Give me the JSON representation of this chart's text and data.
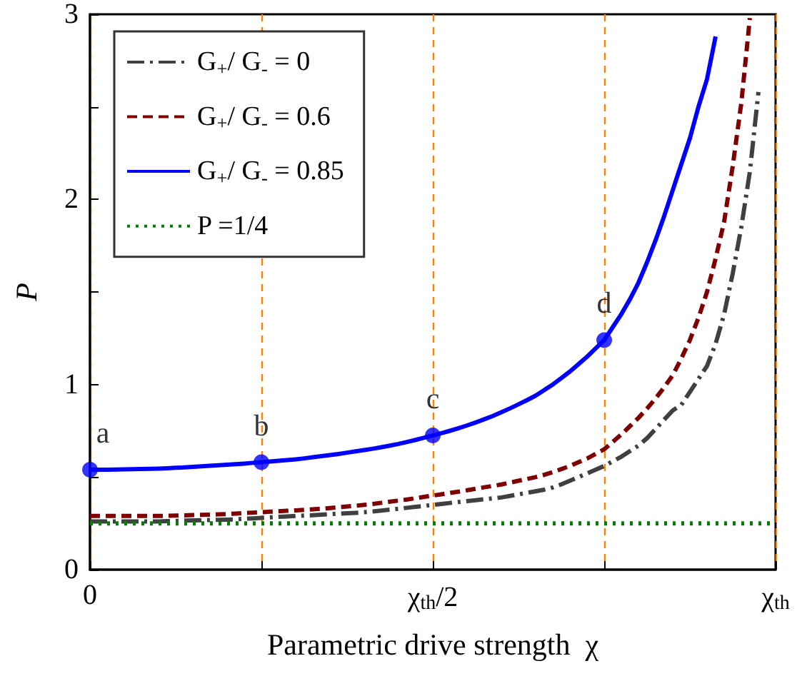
{
  "chart_data": {
    "type": "line",
    "xlabel": "Parametric drive strength  χ",
    "ylabel": "P",
    "categories": [
      "0",
      null,
      null,
      null,
      null,
      null,
      null,
      null,
      null,
      null,
      null,
      null,
      null,
      null,
      null,
      null,
      null,
      null,
      null,
      null,
      null,
      null,
      null,
      null,
      null,
      null,
      null,
      null,
      null,
      null,
      null,
      null,
      null,
      null,
      null,
      null,
      null,
      null,
      null,
      null,
      "χ$_{th}$/2",
      null,
      null,
      null,
      null,
      null,
      null,
      null,
      null,
      null,
      null,
      null,
      null,
      null,
      null,
      null,
      null,
      null,
      null,
      null,
      null,
      null,
      null,
      null,
      null,
      null,
      null,
      null,
      null,
      null,
      null,
      null,
      null,
      null,
      null,
      null,
      null,
      null,
      null,
      null,
      "χ$_{th}$"
    ],
    "ylim": [
      0,
      3
    ],
    "yticks": [
      0,
      {
        "value": 0.5,
        "label": null
      },
      1,
      {
        "value": 1.5,
        "label": null
      },
      2,
      {
        "value": 2.5,
        "label": null
      },
      3
    ],
    "legend": "top left",
    "marker": "none",
    "grid": "x",
    "series": [
      {
        "name": "G$_{+}$/ G$_{-}$ = 0",
        "color": "#404040",
        "line_style": "dashdot",
        "values": [
          0.26,
          0.26,
          0.26,
          0.26,
          0.26,
          0.26,
          0.26,
          0.26,
          0.26,
          0.262,
          0.263,
          0.265,
          0.266,
          0.267,
          0.268,
          0.269,
          0.27,
          0.272,
          0.275,
          0.277,
          0.28,
          0.282,
          0.285,
          0.287,
          0.29,
          0.292,
          0.294,
          0.297,
          0.3,
          0.302,
          0.305,
          0.307,
          0.31,
          0.314,
          0.319,
          0.324,
          0.329,
          0.334,
          0.339,
          0.344,
          0.35,
          0.355,
          0.36,
          0.365,
          0.37,
          0.375,
          0.38,
          0.385,
          0.39,
          0.398,
          0.407,
          0.415,
          0.423,
          0.432,
          0.444,
          0.461,
          0.48,
          0.5,
          0.52,
          0.54,
          0.56,
          0.585,
          0.61,
          0.64,
          0.67,
          0.71,
          0.76,
          0.81,
          0.86,
          0.89,
          0.96,
          1.03,
          1.1,
          1.22,
          1.38,
          1.6,
          1.85,
          2.15,
          2.58,
          null,
          null
        ]
      },
      {
        "name": "G$_{+}$/ G$_{-}$ = 0.6",
        "color": "#7f0000",
        "line_style": "dashed",
        "values": [
          0.29,
          0.29,
          0.29,
          0.29,
          0.29,
          0.29,
          0.29,
          0.29,
          0.29,
          0.291,
          0.292,
          0.293,
          0.295,
          0.296,
          0.297,
          0.299,
          0.3,
          0.303,
          0.306,
          0.308,
          0.31,
          0.313,
          0.315,
          0.318,
          0.32,
          0.323,
          0.326,
          0.329,
          0.333,
          0.337,
          0.341,
          0.345,
          0.35,
          0.355,
          0.361,
          0.367,
          0.373,
          0.379,
          0.386,
          0.393,
          0.4,
          0.407,
          0.414,
          0.421,
          0.429,
          0.437,
          0.445,
          0.452,
          0.46,
          0.47,
          0.48,
          0.49,
          0.5,
          0.512,
          0.527,
          0.543,
          0.56,
          0.58,
          0.6,
          0.625,
          0.65,
          0.69,
          0.73,
          0.775,
          0.82,
          0.87,
          0.925,
          0.985,
          1.05,
          1.14,
          1.24,
          1.36,
          1.5,
          1.68,
          1.88,
          2.18,
          2.52,
          2.98,
          null,
          null,
          null
        ]
      },
      {
        "name": "G$_{+}$/ G$_{-}$ = 0.85",
        "color": "#0000ff",
        "line_style": "solid",
        "values": [
          0.54,
          0.54,
          0.54,
          0.541,
          0.542,
          0.543,
          0.544,
          0.545,
          0.546,
          0.548,
          0.55,
          0.552,
          0.555,
          0.558,
          0.561,
          0.564,
          0.567,
          0.57,
          0.573,
          0.577,
          0.58,
          0.584,
          0.588,
          0.592,
          0.596,
          0.601,
          0.607,
          0.613,
          0.619,
          0.625,
          0.632,
          0.639,
          0.646,
          0.653,
          0.661,
          0.67,
          0.679,
          0.69,
          0.701,
          0.713,
          0.725,
          0.737,
          0.75,
          0.764,
          0.779,
          0.795,
          0.812,
          0.83,
          0.85,
          0.871,
          0.893,
          0.916,
          0.94,
          0.97,
          1.0,
          1.035,
          1.07,
          1.11,
          1.15,
          1.195,
          1.24,
          1.31,
          1.38,
          1.46,
          1.55,
          1.66,
          1.78,
          1.91,
          2.05,
          2.19,
          2.33,
          2.5,
          2.65,
          2.88,
          null,
          null,
          null,
          null,
          null,
          null,
          null
        ]
      },
      {
        "name": "P =1/4",
        "color": "#008000",
        "line_style": "dotted",
        "values": [
          0.25,
          0.25,
          0.25,
          0.25,
          0.25,
          0.25,
          0.25,
          0.25,
          0.25,
          0.25,
          0.25,
          0.25,
          0.25,
          0.25,
          0.25,
          0.25,
          0.25,
          0.25,
          0.25,
          0.25,
          0.25,
          0.25,
          0.25,
          0.25,
          0.25,
          0.25,
          0.25,
          0.25,
          0.25,
          0.25,
          0.25,
          0.25,
          0.25,
          0.25,
          0.25,
          0.25,
          0.25,
          0.25,
          0.25,
          0.25,
          0.25,
          0.25,
          0.25,
          0.25,
          0.25,
          0.25,
          0.25,
          0.25,
          0.25,
          0.25,
          0.25,
          0.25,
          0.25,
          0.25,
          0.25,
          0.25,
          0.25,
          0.25,
          0.25,
          0.25,
          0.25,
          0.25,
          0.25,
          0.25,
          0.25,
          0.25,
          0.25,
          0.25,
          0.25,
          0.25,
          0.25,
          0.25,
          0.25,
          0.25,
          0.25,
          0.25,
          0.25,
          0.25,
          0.25,
          0.25,
          0.25
        ]
      },
      {
        "type": "scatter",
        "color": "#0000ff",
        "marker": "circle",
        "values": [
          0.54,
          null,
          null,
          null,
          null,
          null,
          null,
          null,
          null,
          null,
          null,
          null,
          null,
          null,
          null,
          null,
          null,
          null,
          null,
          null,
          0.58,
          null,
          null,
          null,
          null,
          null,
          null,
          null,
          null,
          null,
          null,
          null,
          null,
          null,
          null,
          null,
          null,
          null,
          null,
          null,
          0.725,
          null,
          null,
          null,
          null,
          null,
          null,
          null,
          null,
          null,
          null,
          null,
          null,
          null,
          null,
          null,
          null,
          null,
          null,
          null,
          1.24,
          null,
          null,
          null,
          null,
          null,
          null,
          null,
          null,
          null,
          null,
          null,
          null,
          null,
          null,
          null,
          null,
          null,
          null,
          null,
          null
        ],
        "value_labels": [
          "a",
          null,
          null,
          null,
          null,
          null,
          null,
          null,
          null,
          null,
          null,
          null,
          null,
          null,
          null,
          null,
          null,
          null,
          null,
          null,
          "b",
          null,
          null,
          null,
          null,
          null,
          null,
          null,
          null,
          null,
          null,
          null,
          null,
          null,
          null,
          null,
          null,
          null,
          null,
          null,
          "c",
          null,
          null,
          null,
          null,
          null,
          null,
          null,
          null,
          null,
          null,
          null,
          null,
          null,
          null,
          null,
          null,
          null,
          null,
          null,
          "d",
          null,
          null,
          null,
          null,
          null,
          null,
          null,
          null,
          null,
          null,
          null,
          null,
          null,
          null,
          null,
          null,
          null,
          null,
          null,
          null
        ]
      }
    ]
  }
}
